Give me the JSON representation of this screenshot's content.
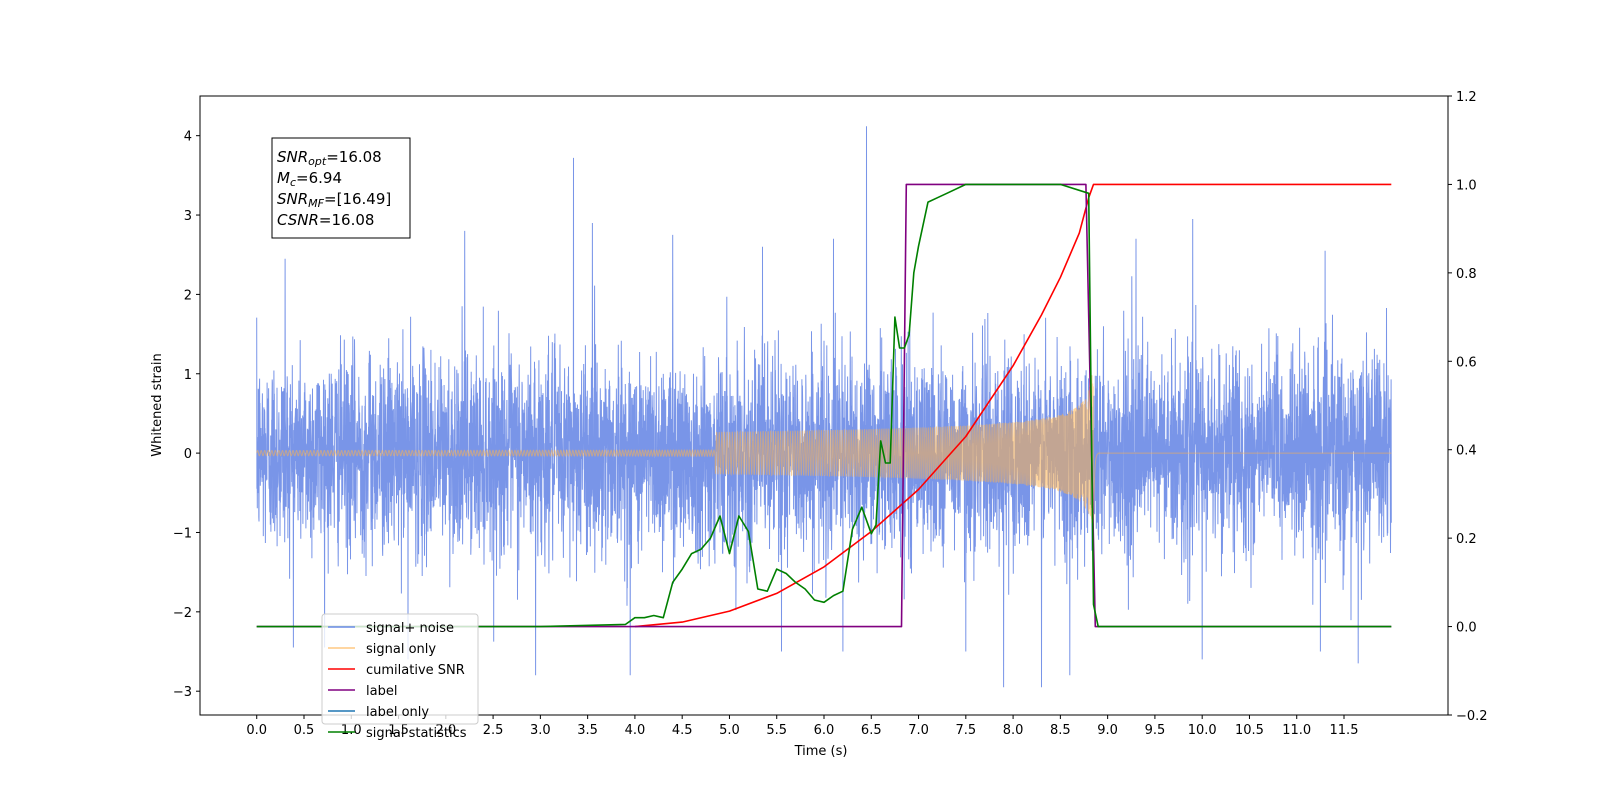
{
  "chart_data": {
    "type": "line",
    "xlabel": "Time (s)",
    "ylabel": "Whitened strain",
    "xlim": [
      -0.6,
      12.6
    ],
    "ylim": [
      -3.3,
      4.5
    ],
    "ylim_right": [
      -0.2,
      1.2
    ],
    "x_ticks": [
      0.0,
      0.5,
      1.0,
      1.5,
      2.0,
      2.5,
      3.0,
      3.5,
      4.0,
      4.5,
      5.0,
      5.5,
      6.0,
      6.5,
      7.0,
      7.5,
      8.0,
      8.5,
      9.0,
      9.5,
      10.0,
      10.5,
      11.0,
      11.5
    ],
    "x_tick_labels": [
      "0.0",
      "0.5",
      "1.0",
      "1.5",
      "2.0",
      "2.5",
      "3.0",
      "3.5",
      "4.0",
      "4.5",
      "5.0",
      "5.5",
      "6.0",
      "6.5",
      "7.0",
      "7.5",
      "8.0",
      "8.5",
      "9.0",
      "9.5",
      "10.0",
      "10.5",
      "11.0",
      "11.5"
    ],
    "y_ticks": [
      -3,
      -2,
      -1,
      0,
      1,
      2,
      3,
      4
    ],
    "y_tick_labels": [
      "−3",
      "−2",
      "−1",
      "0",
      "1",
      "2",
      "3",
      "4"
    ],
    "y_right_ticks": [
      -0.2,
      0.0,
      0.2,
      0.4,
      0.6,
      0.8,
      1.0,
      1.2
    ],
    "y_right_tick_labels": [
      "−0.2",
      "0.0",
      "0.2",
      "0.4",
      "0.6",
      "0.8",
      "1.0",
      "1.2"
    ],
    "annotations": [
      {
        "sym": "SNR",
        "sub": "opt",
        "val": "=16.08"
      },
      {
        "sym": "M",
        "sub": "c",
        "val": "=6.94"
      },
      {
        "sym": "SNR",
        "sub": "MF",
        "val": "=[16.49]"
      },
      {
        "sym": "CSNR",
        "sub": "",
        "val": "=16.08"
      }
    ],
    "legend": {
      "placement": "lower-left",
      "entries": [
        {
          "label": "signal+ noise",
          "color": "#6a8ae6"
        },
        {
          "label": "signal only",
          "color": "#ffb24d"
        },
        {
          "label": "cumilative SNR",
          "color": "#ff0000"
        },
        {
          "label": "label",
          "color": "#800080"
        },
        {
          "label": "label only",
          "color": "#1f77b4"
        },
        {
          "label": "signal statistics",
          "color": "#008000"
        }
      ]
    },
    "series": [
      {
        "name": "signal+ noise",
        "axis": "left",
        "color": "#6a8ae6",
        "kind": "noise",
        "x_start": 0.0,
        "x_end": 12.0,
        "envelope_typical": 1.6,
        "spikes": [
          [
            0.3,
            2.45
          ],
          [
            2.2,
            2.8
          ],
          [
            3.35,
            3.72
          ],
          [
            3.55,
            2.9
          ],
          [
            4.4,
            2.75
          ],
          [
            5.35,
            2.6
          ],
          [
            6.1,
            2.7
          ],
          [
            6.45,
            4.12
          ],
          [
            9.3,
            2.7
          ],
          [
            9.9,
            2.95
          ],
          [
            11.3,
            2.55
          ],
          [
            1.6,
            -2.6
          ],
          [
            2.95,
            -2.8
          ],
          [
            3.95,
            -2.8
          ],
          [
            5.55,
            -2.5
          ],
          [
            6.2,
            -2.5
          ],
          [
            7.5,
            -2.5
          ],
          [
            7.9,
            -2.95
          ],
          [
            8.3,
            -2.95
          ],
          [
            8.6,
            -2.8
          ],
          [
            10.0,
            -2.6
          ],
          [
            11.25,
            -2.5
          ],
          [
            11.65,
            -2.65
          ]
        ]
      },
      {
        "name": "signal only",
        "axis": "left",
        "color": "#ffb24d",
        "kind": "chirp",
        "x_start": 0.0,
        "x_end": 12.0,
        "merger_time": 8.85,
        "peak_amplitude": 1.0
      },
      {
        "name": "cumilative SNR",
        "axis": "right",
        "color": "#ff0000",
        "x": [
          4.0,
          4.5,
          5.0,
          5.5,
          6.0,
          6.5,
          7.0,
          7.5,
          8.0,
          8.3,
          8.5,
          8.7,
          8.8,
          8.85,
          12.0
        ],
        "values": [
          0.0,
          0.01,
          0.035,
          0.075,
          0.135,
          0.215,
          0.31,
          0.43,
          0.59,
          0.705,
          0.79,
          0.89,
          0.97,
          1.0,
          1.0
        ]
      },
      {
        "name": "label",
        "axis": "right",
        "color": "#800080",
        "x": [
          0.0,
          6.82,
          6.87,
          8.77,
          8.87,
          9.5,
          12.0
        ],
        "values": [
          0.0,
          0.0,
          1.0,
          1.0,
          0.0,
          0.0,
          0.0
        ]
      },
      {
        "name": "signal statistics",
        "axis": "right",
        "color": "#008000",
        "x": [
          0.0,
          3.0,
          3.9,
          4.0,
          4.1,
          4.2,
          4.3,
          4.4,
          4.5,
          4.6,
          4.7,
          4.8,
          4.9,
          5.0,
          5.1,
          5.2,
          5.3,
          5.4,
          5.5,
          5.6,
          5.7,
          5.8,
          5.9,
          6.0,
          6.1,
          6.2,
          6.3,
          6.4,
          6.5,
          6.55,
          6.6,
          6.65,
          6.7,
          6.75,
          6.8,
          6.85,
          6.9,
          6.95,
          7.0,
          7.1,
          7.2,
          7.3,
          7.5,
          7.7,
          8.0,
          8.5,
          8.8,
          8.85,
          8.9,
          9.0,
          12.0
        ],
        "values": [
          0.0,
          0.0,
          0.005,
          0.02,
          0.02,
          0.025,
          0.02,
          0.1,
          0.13,
          0.165,
          0.175,
          0.2,
          0.25,
          0.165,
          0.25,
          0.215,
          0.085,
          0.08,
          0.13,
          0.12,
          0.1,
          0.085,
          0.06,
          0.055,
          0.07,
          0.08,
          0.22,
          0.27,
          0.21,
          0.23,
          0.42,
          0.37,
          0.37,
          0.7,
          0.63,
          0.63,
          0.66,
          0.8,
          0.86,
          0.96,
          0.97,
          0.98,
          1.0,
          1.0,
          1.0,
          1.0,
          0.98,
          0.05,
          0.0,
          0.0,
          0.0
        ]
      }
    ]
  }
}
